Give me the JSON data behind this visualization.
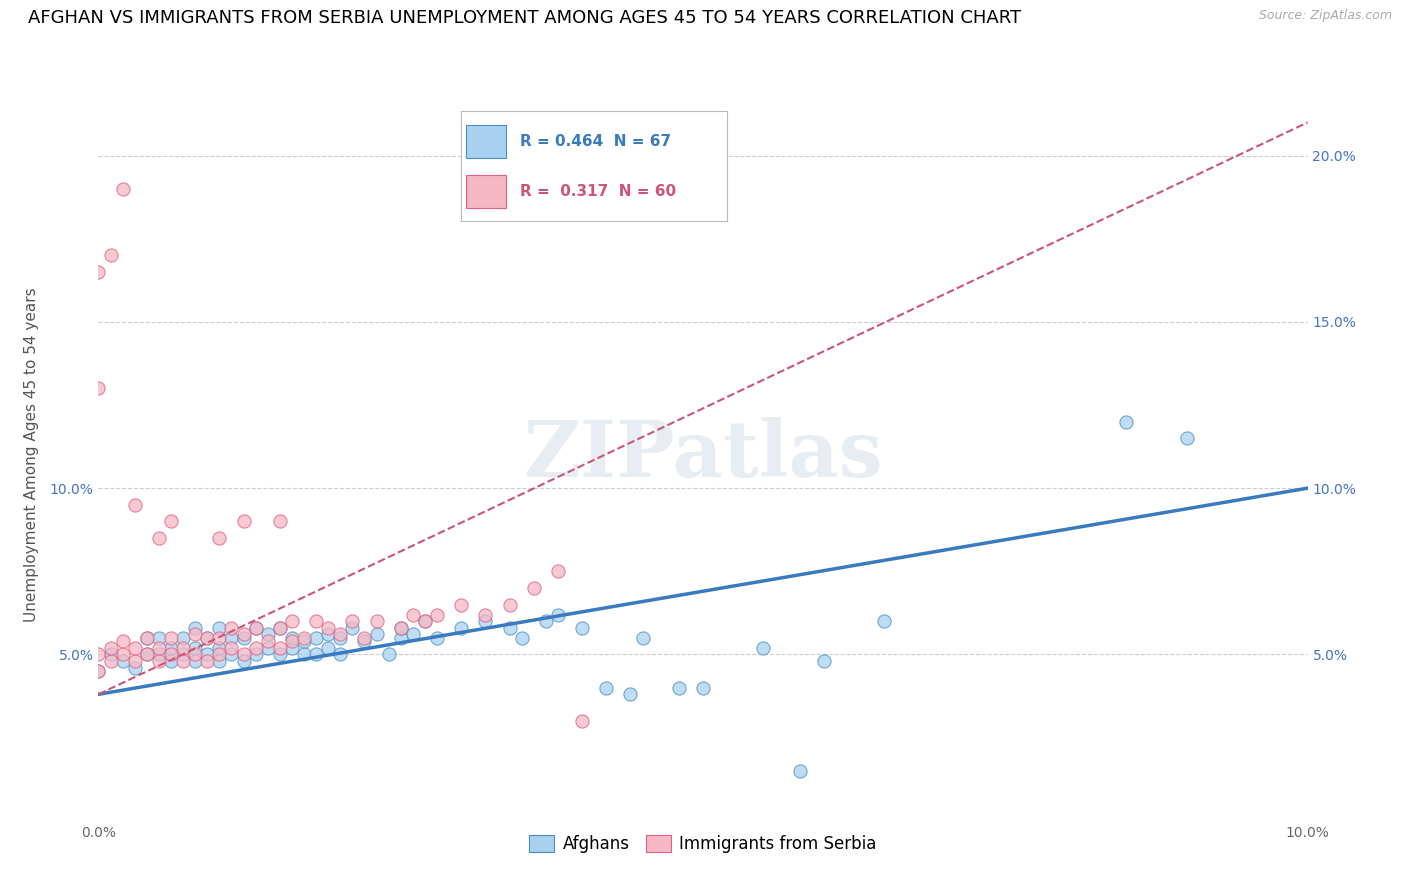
{
  "title": "AFGHAN VS IMMIGRANTS FROM SERBIA UNEMPLOYMENT AMONG AGES 45 TO 54 YEARS CORRELATION CHART",
  "source": "Source: ZipAtlas.com",
  "ylabel": "Unemployment Among Ages 45 to 54 years",
  "xlim": [
    0.0,
    0.1
  ],
  "ylim": [
    0.0,
    0.1
  ],
  "x_ticks": [
    0.0,
    0.1
  ],
  "x_tick_labels": [
    "0.0%",
    "10.0%"
  ],
  "y_ticks": [
    0.0,
    0.05,
    0.1
  ],
  "y_tick_labels_left": [
    "",
    "5.0%",
    "10.0%"
  ],
  "y_ticks_right": [
    0.0,
    0.05,
    0.1,
    0.15,
    0.2
  ],
  "y_tick_labels_right": [
    "",
    "5.0%",
    "10.0%",
    "15.0%",
    "20.0%"
  ],
  "ylim_right": [
    0.0,
    0.22
  ],
  "afghans_R": 0.464,
  "afghans_N": 67,
  "serbia_R": 0.317,
  "serbia_N": 60,
  "afghans_color": "#a8d1f0",
  "serbia_color": "#f5b8c4",
  "afghans_edge_color": "#4a90c4",
  "serbia_edge_color": "#e06080",
  "afghans_line_color": "#3a7abf",
  "serbia_line_color": "#cc5577",
  "watermark": "ZIPatlas",
  "legend_afghans": "Afghans",
  "legend_serbia": "Immigrants from Serbia",
  "afghans_scatter": [
    [
      0.0,
      0.045
    ],
    [
      0.001,
      0.05
    ],
    [
      0.002,
      0.048
    ],
    [
      0.003,
      0.046
    ],
    [
      0.004,
      0.05
    ],
    [
      0.004,
      0.055
    ],
    [
      0.005,
      0.05
    ],
    [
      0.005,
      0.055
    ],
    [
      0.006,
      0.048
    ],
    [
      0.006,
      0.052
    ],
    [
      0.007,
      0.05
    ],
    [
      0.007,
      0.055
    ],
    [
      0.008,
      0.048
    ],
    [
      0.008,
      0.052
    ],
    [
      0.008,
      0.058
    ],
    [
      0.009,
      0.05
    ],
    [
      0.009,
      0.055
    ],
    [
      0.01,
      0.048
    ],
    [
      0.01,
      0.052
    ],
    [
      0.01,
      0.058
    ],
    [
      0.011,
      0.05
    ],
    [
      0.011,
      0.055
    ],
    [
      0.012,
      0.048
    ],
    [
      0.012,
      0.055
    ],
    [
      0.013,
      0.05
    ],
    [
      0.013,
      0.058
    ],
    [
      0.014,
      0.052
    ],
    [
      0.014,
      0.056
    ],
    [
      0.015,
      0.05
    ],
    [
      0.015,
      0.058
    ],
    [
      0.016,
      0.052
    ],
    [
      0.016,
      0.055
    ],
    [
      0.017,
      0.05
    ],
    [
      0.017,
      0.054
    ],
    [
      0.018,
      0.05
    ],
    [
      0.018,
      0.055
    ],
    [
      0.019,
      0.052
    ],
    [
      0.019,
      0.056
    ],
    [
      0.02,
      0.05
    ],
    [
      0.02,
      0.055
    ],
    [
      0.021,
      0.058
    ],
    [
      0.022,
      0.054
    ],
    [
      0.023,
      0.056
    ],
    [
      0.024,
      0.05
    ],
    [
      0.025,
      0.055
    ],
    [
      0.025,
      0.058
    ],
    [
      0.026,
      0.056
    ],
    [
      0.027,
      0.06
    ],
    [
      0.028,
      0.055
    ],
    [
      0.03,
      0.058
    ],
    [
      0.032,
      0.06
    ],
    [
      0.034,
      0.058
    ],
    [
      0.035,
      0.055
    ],
    [
      0.037,
      0.06
    ],
    [
      0.038,
      0.062
    ],
    [
      0.04,
      0.058
    ],
    [
      0.042,
      0.04
    ],
    [
      0.044,
      0.038
    ],
    [
      0.045,
      0.055
    ],
    [
      0.048,
      0.04
    ],
    [
      0.05,
      0.04
    ],
    [
      0.055,
      0.052
    ],
    [
      0.058,
      0.015
    ],
    [
      0.06,
      0.048
    ],
    [
      0.065,
      0.06
    ],
    [
      0.085,
      0.12
    ],
    [
      0.09,
      0.115
    ]
  ],
  "serbia_scatter": [
    [
      0.0,
      0.045
    ],
    [
      0.0,
      0.05
    ],
    [
      0.001,
      0.048
    ],
    [
      0.001,
      0.052
    ],
    [
      0.002,
      0.05
    ],
    [
      0.002,
      0.054
    ],
    [
      0.003,
      0.048
    ],
    [
      0.003,
      0.052
    ],
    [
      0.004,
      0.05
    ],
    [
      0.004,
      0.055
    ],
    [
      0.005,
      0.048
    ],
    [
      0.005,
      0.052
    ],
    [
      0.006,
      0.05
    ],
    [
      0.006,
      0.055
    ],
    [
      0.007,
      0.048
    ],
    [
      0.007,
      0.052
    ],
    [
      0.008,
      0.05
    ],
    [
      0.008,
      0.056
    ],
    [
      0.009,
      0.048
    ],
    [
      0.009,
      0.055
    ],
    [
      0.01,
      0.05
    ],
    [
      0.01,
      0.055
    ],
    [
      0.011,
      0.052
    ],
    [
      0.011,
      0.058
    ],
    [
      0.012,
      0.05
    ],
    [
      0.012,
      0.056
    ],
    [
      0.013,
      0.052
    ],
    [
      0.013,
      0.058
    ],
    [
      0.014,
      0.054
    ],
    [
      0.015,
      0.052
    ],
    [
      0.015,
      0.058
    ],
    [
      0.016,
      0.054
    ],
    [
      0.016,
      0.06
    ],
    [
      0.017,
      0.055
    ],
    [
      0.018,
      0.06
    ],
    [
      0.019,
      0.058
    ],
    [
      0.02,
      0.056
    ],
    [
      0.021,
      0.06
    ],
    [
      0.022,
      0.055
    ],
    [
      0.023,
      0.06
    ],
    [
      0.025,
      0.058
    ],
    [
      0.026,
      0.062
    ],
    [
      0.027,
      0.06
    ],
    [
      0.028,
      0.062
    ],
    [
      0.03,
      0.065
    ],
    [
      0.032,
      0.062
    ],
    [
      0.034,
      0.065
    ],
    [
      0.036,
      0.07
    ],
    [
      0.038,
      0.075
    ],
    [
      0.04,
      0.03
    ],
    [
      0.003,
      0.095
    ],
    [
      0.005,
      0.085
    ],
    [
      0.006,
      0.09
    ],
    [
      0.01,
      0.085
    ],
    [
      0.012,
      0.09
    ],
    [
      0.015,
      0.09
    ],
    [
      0.0,
      0.13
    ],
    [
      0.0,
      0.165
    ],
    [
      0.001,
      0.17
    ],
    [
      0.002,
      0.19
    ]
  ],
  "afghans_line": [
    [
      0.0,
      0.038
    ],
    [
      0.1,
      0.1
    ]
  ],
  "serbia_line": [
    [
      0.0,
      0.038
    ],
    [
      0.1,
      0.21
    ]
  ],
  "title_fontsize": 13,
  "axis_label_fontsize": 11,
  "tick_fontsize": 10,
  "legend_fontsize": 12
}
